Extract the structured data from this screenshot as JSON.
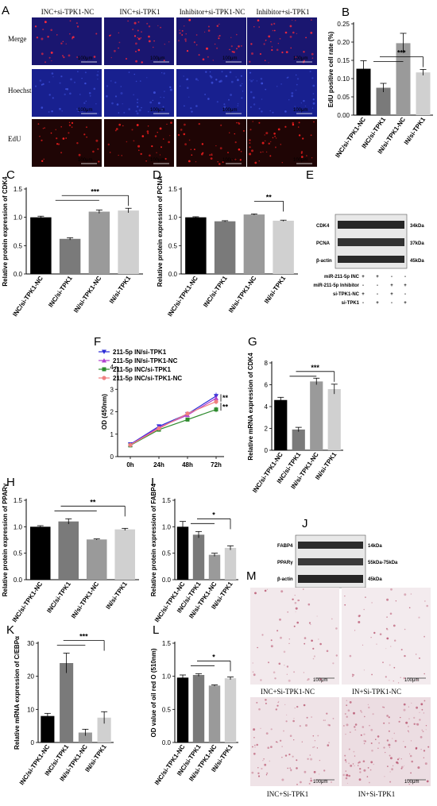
{
  "panels": [
    {
      "letter": "A"
    },
    {
      "letter": "B"
    },
    {
      "letter": "C"
    },
    {
      "letter": "D"
    },
    {
      "letter": "E"
    },
    {
      "letter": "F"
    },
    {
      "letter": "G"
    },
    {
      "letter": "H"
    },
    {
      "letter": "I"
    },
    {
      "letter": "J"
    },
    {
      "letter": "K"
    },
    {
      "letter": "L"
    },
    {
      "letter": "M"
    }
  ],
  "panelA": {
    "columns": [
      "INC+si-TPK1-NC",
      "INC+si-TPK1",
      "Inhibitor+si-TPK1-NC",
      "Inhibitor+si-TPK1"
    ],
    "rows": [
      "Merge",
      "Hoechst",
      "EdU"
    ],
    "scale": "100μm",
    "row_colors": [
      "#1a1670",
      "#18208f",
      "#1f0505"
    ],
    "dot_colors": [
      "#ff2a3a",
      "#3b4dd6",
      "#ff2020"
    ]
  },
  "panelE": {
    "bands": [
      {
        "label": "CDK4",
        "kda": "34kDa"
      },
      {
        "label": "PCNA",
        "kda": "37kDa"
      },
      {
        "label": "β-actin",
        "kda": "45kDa"
      }
    ],
    "conditions": [
      {
        "label": "miR-211-5p INC",
        "signs": [
          "+",
          "+",
          "-",
          "-"
        ]
      },
      {
        "label": "miR-211-5p Inhibitor",
        "signs": [
          "-",
          "-",
          "+",
          "+"
        ]
      },
      {
        "label": "si-TPK1-NC",
        "signs": [
          "+",
          "-",
          "+",
          "-"
        ]
      },
      {
        "label": "si-TPK1",
        "signs": [
          "-",
          "+",
          "-",
          "+"
        ]
      }
    ]
  },
  "panelJ": {
    "bands": [
      {
        "label": "FABP4",
        "kda": "14kDa"
      },
      {
        "label": "PPARγ",
        "kda": "55kDa-75kDa"
      },
      {
        "label": "β-actin",
        "kda": "45kDa"
      }
    ],
    "conditions": [
      {
        "label": "miR-211-5p INC",
        "signs": [
          "+",
          "+",
          "-",
          "-"
        ]
      },
      {
        "label": "miR-211-5p Inhibitor",
        "signs": [
          "-",
          "-",
          "+",
          "+"
        ]
      },
      {
        "label": "si-TPK1-NC",
        "signs": [
          "+",
          "-",
          "+",
          "-"
        ]
      },
      {
        "label": "si-TPK1",
        "signs": [
          "-",
          "+",
          "-",
          "+"
        ]
      }
    ]
  },
  "panelM": {
    "labels": [
      "INC+Si-TPK1-NC",
      "IN+Si-TPK1-NC",
      "INC+Si-TPK1",
      "IN+Si-TPK1"
    ],
    "scale": "100μm"
  },
  "bar_colors": [
    "#000000",
    "#7a7a7a",
    "#9a9a9a",
    "#d0d0d0"
  ],
  "chart_data": [
    {
      "panel": "B",
      "type": "bar",
      "ylabel": "EdU positive cell rate (%)",
      "ylim": [
        0,
        0.25
      ],
      "yticks": [
        "0.00",
        "0.05",
        "0.10",
        "0.15",
        "0.20",
        "0.25"
      ],
      "categories": [
        "INC/si-TPK1-NC",
        "INC/si-TPK1",
        "IN/si-TPK1-NC",
        "IN/si-TPK1"
      ],
      "values": [
        0.127,
        0.075,
        0.197,
        0.117
      ],
      "errors": [
        0.022,
        0.012,
        0.027,
        0.008
      ],
      "annotations": [
        {
          "text": "***",
          "from": 1,
          "to": 3
        }
      ]
    },
    {
      "panel": "C",
      "type": "bar",
      "ylabel": "Relative protein expression of CDK4",
      "ylim": [
        0,
        1.5
      ],
      "yticks": [
        "0.0",
        "0.5",
        "1.0",
        "1.5"
      ],
      "categories": [
        "INC/si-TPK1-NC",
        "INC/si-TPK1",
        "IN/si-TPK1-NC",
        "IN/si-TPK1"
      ],
      "values": [
        1.0,
        0.62,
        1.1,
        1.12
      ],
      "errors": [
        0.02,
        0.02,
        0.03,
        0.04
      ],
      "annotations": [
        {
          "text": "***",
          "from": 1,
          "to": 3
        }
      ]
    },
    {
      "panel": "D",
      "type": "bar",
      "ylabel": "Relative protein expression of PCNA",
      "ylim": [
        0,
        1.5
      ],
      "yticks": [
        "0.0",
        "0.5",
        "1.0",
        "1.5"
      ],
      "categories": [
        "INC/si-TPK1-NC",
        "INC/si-TPK1",
        "IN/si-TPK1-NC",
        "IN/si-TPK1"
      ],
      "values": [
        1.0,
        0.93,
        1.05,
        0.94
      ],
      "errors": [
        0.01,
        0.01,
        0.01,
        0.01
      ],
      "annotations": [
        {
          "text": "**",
          "from": 2,
          "to": 3
        }
      ]
    },
    {
      "panel": "F",
      "type": "line",
      "ylabel": "OD (450nm)",
      "ylim": [
        0,
        4
      ],
      "yticks": [
        "0",
        "1",
        "2",
        "3",
        "4"
      ],
      "x": [
        "0h",
        "24h",
        "48h",
        "72h"
      ],
      "series": [
        {
          "name": "211-5p IN/si-TPK1",
          "color": "#2b2bd6",
          "marker": "tri-down",
          "values": [
            0.55,
            1.35,
            1.9,
            2.7
          ],
          "errors": [
            0.03,
            0.04,
            0.06,
            0.15
          ]
        },
        {
          "name": "211-5p IN/si-TPK1-NC",
          "color": "#b03fcf",
          "marker": "tri-up",
          "values": [
            0.53,
            1.3,
            1.85,
            2.6
          ],
          "errors": [
            0.03,
            0.04,
            0.05,
            0.15
          ]
        },
        {
          "name": "211-5p INC/si-TPK1",
          "color": "#2e8b2e",
          "marker": "square",
          "values": [
            0.5,
            1.2,
            1.65,
            2.1
          ],
          "errors": [
            0.03,
            0.04,
            0.05,
            0.12
          ]
        },
        {
          "name": "211-5p INC/si-TPK1-NC",
          "color": "#f08080",
          "marker": "circle",
          "values": [
            0.52,
            1.25,
            1.92,
            2.45
          ],
          "errors": [
            0.03,
            0.04,
            0.06,
            0.12
          ]
        }
      ],
      "annotations": [
        {
          "text": "**"
        },
        {
          "text": "**"
        }
      ]
    },
    {
      "panel": "G",
      "type": "bar",
      "ylabel": "Relative mRNA expression of CDK4",
      "ylim": [
        0,
        8
      ],
      "yticks": [
        "0",
        "2",
        "4",
        "6",
        "8"
      ],
      "categories": [
        "INC/si-TPK1-NC",
        "INC/si-TPK1",
        "IN/si-TPK1-NC",
        "IN/si-TPK1"
      ],
      "values": [
        4.6,
        1.9,
        6.3,
        5.6
      ],
      "errors": [
        0.25,
        0.2,
        0.3,
        0.45
      ],
      "annotations": [
        {
          "text": "***",
          "from": 1,
          "to": 3
        }
      ]
    },
    {
      "panel": "H",
      "type": "bar",
      "ylabel": "Relative protein expression of PPARγ",
      "ylim": [
        0,
        1.5
      ],
      "yticks": [
        "0.0",
        "0.5",
        "1.0",
        "1.5"
      ],
      "categories": [
        "INC/si-TPK1-NC",
        "INC/si-TPK1",
        "IN/si-TPK1-NC",
        "IN/si-TPK1"
      ],
      "values": [
        1.0,
        1.1,
        0.76,
        0.95
      ],
      "errors": [
        0.02,
        0.05,
        0.01,
        0.02
      ],
      "annotations": [
        {
          "text": "**",
          "from": 1,
          "to": 3
        }
      ]
    },
    {
      "panel": "I",
      "type": "bar",
      "ylabel": "Relative protein expression of FABP4",
      "ylim": [
        0,
        1.5
      ],
      "yticks": [
        "0.0",
        "0.5",
        "1.0",
        "1.5"
      ],
      "categories": [
        "INC/si-TPK1-NC",
        "INC/si-TPK1",
        "IN/si-TPK1-NC",
        "IN/si-TPK1"
      ],
      "values": [
        1.0,
        0.85,
        0.47,
        0.6
      ],
      "errors": [
        0.1,
        0.06,
        0.03,
        0.04
      ],
      "annotations": [
        {
          "text": "*",
          "from": 1,
          "to": 3
        }
      ]
    },
    {
      "panel": "K",
      "type": "bar",
      "ylabel": "Relative mRNA expression of C/EBPα",
      "ylim": [
        0,
        30
      ],
      "yticks": [
        "0",
        "10",
        "20",
        "30"
      ],
      "categories": [
        "INC/si-TPK1-NC",
        "INC/si-TPK1",
        "IN/si-TPK1-NC",
        "IN/si-TPK1"
      ],
      "values": [
        8,
        24,
        3,
        7.5
      ],
      "errors": [
        0.8,
        3,
        1,
        1.8
      ],
      "annotations": [
        {
          "text": "***",
          "from": 1,
          "to": 3
        }
      ]
    },
    {
      "panel": "L",
      "type": "bar",
      "ylabel": "OD value of oil red O (510nm)",
      "ylim": [
        0,
        1.5
      ],
      "yticks": [
        "0.0",
        "0.5",
        "1.0",
        "1.5"
      ],
      "categories": [
        "INC/si-TPK1-NC",
        "INC/si-TPK1",
        "IN/si-TPK1-NC",
        "IN/si-TPK1"
      ],
      "values": [
        0.98,
        1.02,
        0.86,
        0.97
      ],
      "errors": [
        0.04,
        0.02,
        0.01,
        0.02
      ],
      "annotations": [
        {
          "text": "*",
          "from": 1,
          "to": 3
        }
      ]
    }
  ]
}
